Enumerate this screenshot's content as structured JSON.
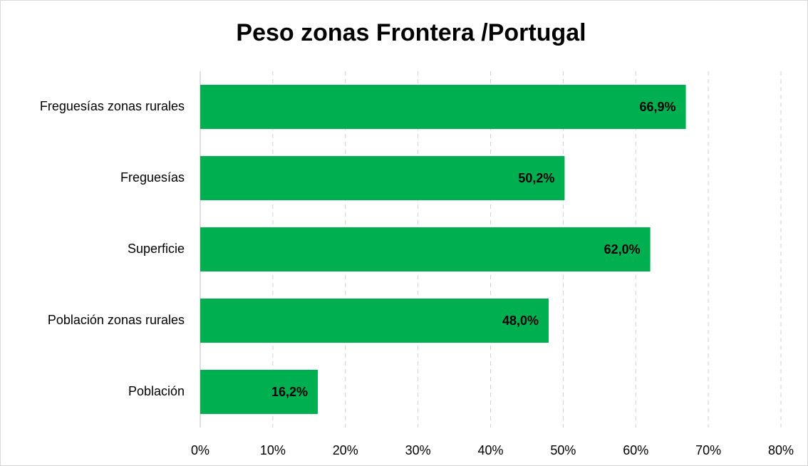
{
  "chart_data": {
    "type": "bar",
    "orientation": "horizontal",
    "title": "Peso zonas Frontera /Portugal",
    "categories": [
      "Freguesías zonas rurales",
      "Freguesías",
      "Superficie",
      "Población zonas rurales",
      "Población"
    ],
    "values": [
      66.9,
      50.2,
      62.0,
      48.0,
      16.2
    ],
    "value_labels": [
      "66,9%",
      "50,2%",
      "62,0%",
      "48,0%",
      "16,2%"
    ],
    "color": "#00b050",
    "xlim": [
      0,
      80
    ],
    "xticks": [
      {
        "value": 0,
        "label": "0%"
      },
      {
        "value": 10,
        "label": "10%"
      },
      {
        "value": 20,
        "label": "20%"
      },
      {
        "value": 30,
        "label": "30%"
      },
      {
        "value": 40,
        "label": "40%"
      },
      {
        "value": 50,
        "label": "50%"
      },
      {
        "value": 60,
        "label": "60%"
      },
      {
        "value": 70,
        "label": "70%"
      },
      {
        "value": 80,
        "label": "80%"
      }
    ],
    "grid": true
  }
}
